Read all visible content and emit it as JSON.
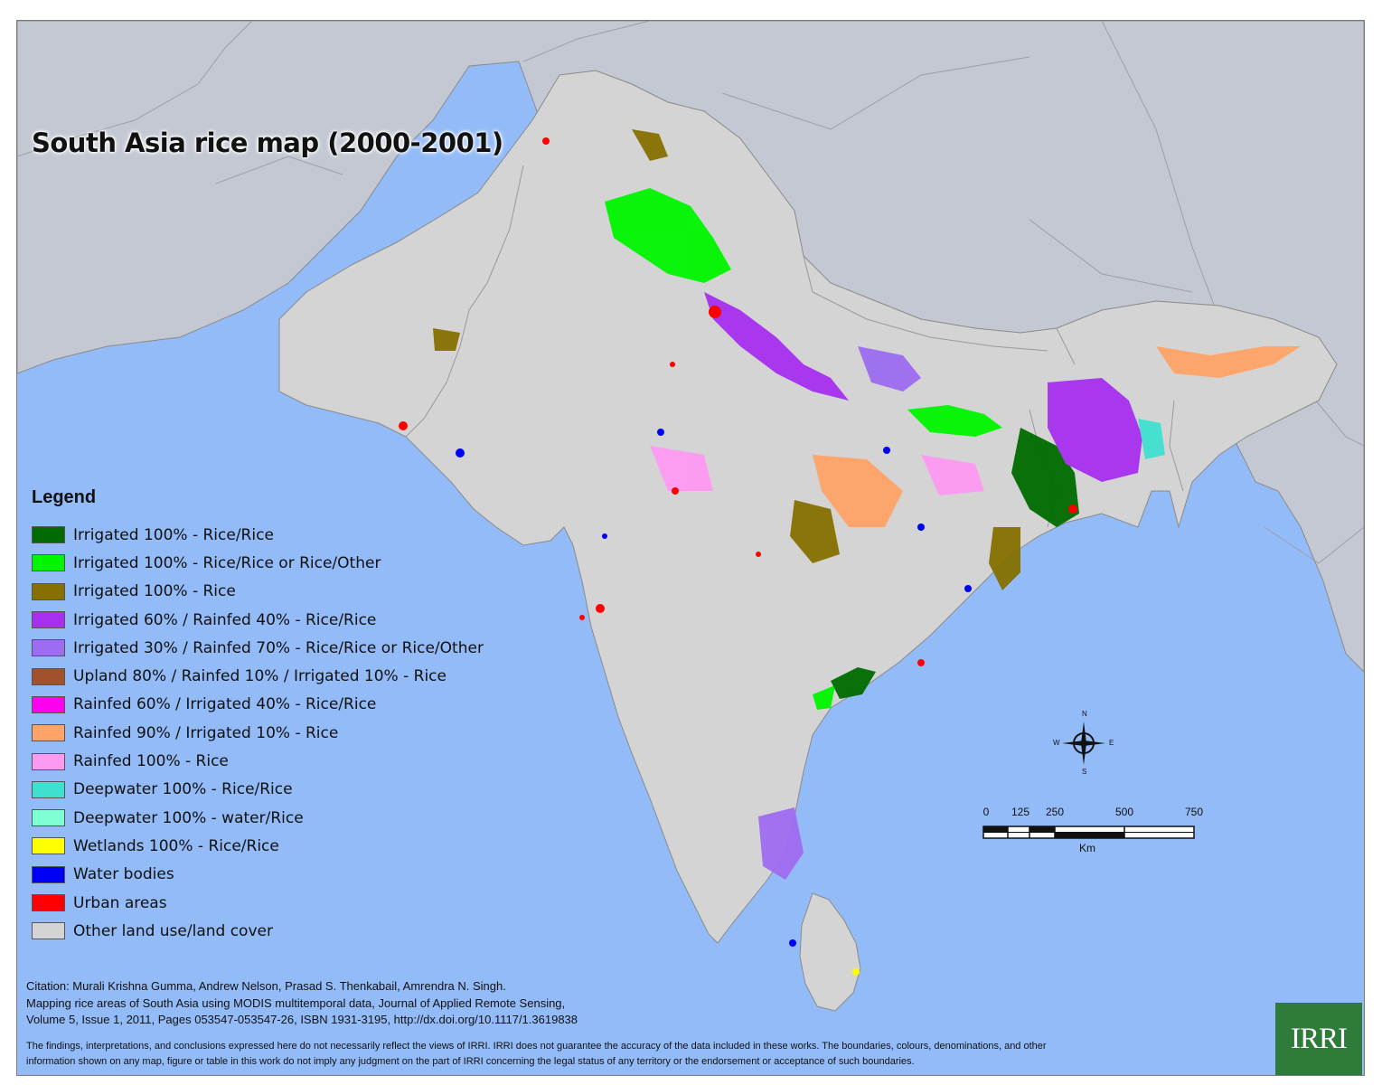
{
  "title": "South Asia rice map (2000-2001)",
  "colors": {
    "ocean": "#93bbf7",
    "land_other": "#d4d4d4",
    "neighbor_land": "#c3c8d3",
    "border": "#8a8a8a",
    "logo_green": "#2f7b3a"
  },
  "legend": {
    "title": "Legend",
    "items": [
      {
        "label": "Irrigated 100% - Rice/Rice",
        "color": "#006b00"
      },
      {
        "label": "Irrigated 100% - Rice/Rice or Rice/Other",
        "color": "#00f600"
      },
      {
        "label": "Irrigated 100% - Rice",
        "color": "#857000"
      },
      {
        "label": "Irrigated 60% / Rainfed 40% - Rice/Rice",
        "color": "#a62ff0"
      },
      {
        "label": "Irrigated 30% / Rainfed 70% - Rice/Rice or Rice/Other",
        "color": "#9e6cf0"
      },
      {
        "label": "Upland 80% / Rainfed 10% / Irrigated 10%  - Rice",
        "color": "#a0522d"
      },
      {
        "label": "Rainfed 60% / Irrigated 40% - Rice/Rice",
        "color": "#ff00ee"
      },
      {
        "label": "Rainfed 90% / Irrigated 10% - Rice",
        "color": "#ffa468"
      },
      {
        "label": "Rainfed 100% - Rice",
        "color": "#ff9af2"
      },
      {
        "label": "Deepwater 100% - Rice/Rice",
        "color": "#40e0d0"
      },
      {
        "label": "Deepwater 100% - water/Rice",
        "color": "#7fffd4"
      },
      {
        "label": "Wetlands 100% - Rice/Rice",
        "color": "#ffff00"
      },
      {
        "label": "Water bodies",
        "color": "#0000f5"
      },
      {
        "label": "Urban areas",
        "color": "#ff0000"
      },
      {
        "label": "Other land use/land cover",
        "color": "#d4d4d4"
      }
    ]
  },
  "citation": {
    "line1": "Citation: Murali Krishna Gumma, Andrew Nelson, Prasad S. Thenkabail, Amrendra N. Singh.",
    "line2": "Mapping rice areas of South Asia using MODIS multitemporal data, Journal of Applied Remote Sensing,",
    "line3": "Volume 5, Issue 1, 2011, Pages 053547-053547-26, ISBN 1931-3195, http://dx.doi.org/10.1117/1.3619838"
  },
  "disclaimer": {
    "line1": "The findings, interpretations, and conclusions expressed here do not necessarily reflect the views of IRRI. IRRI does not guarantee the accuracy of the data included in these works. The boundaries, colours, denominations, and other",
    "line2": "information shown on any map, figure or table in this work do not imply any judgment  on the part of IRRI concerning the legal status of any territory or the endorsement or acceptance of such boundaries."
  },
  "logo": {
    "text": "IRRI"
  },
  "compass": {
    "n": "N",
    "s": "S",
    "e": "E",
    "w": "W"
  },
  "scale": {
    "ticks": [
      "0",
      "125",
      "250",
      "500",
      "750"
    ],
    "unit": "Km"
  }
}
